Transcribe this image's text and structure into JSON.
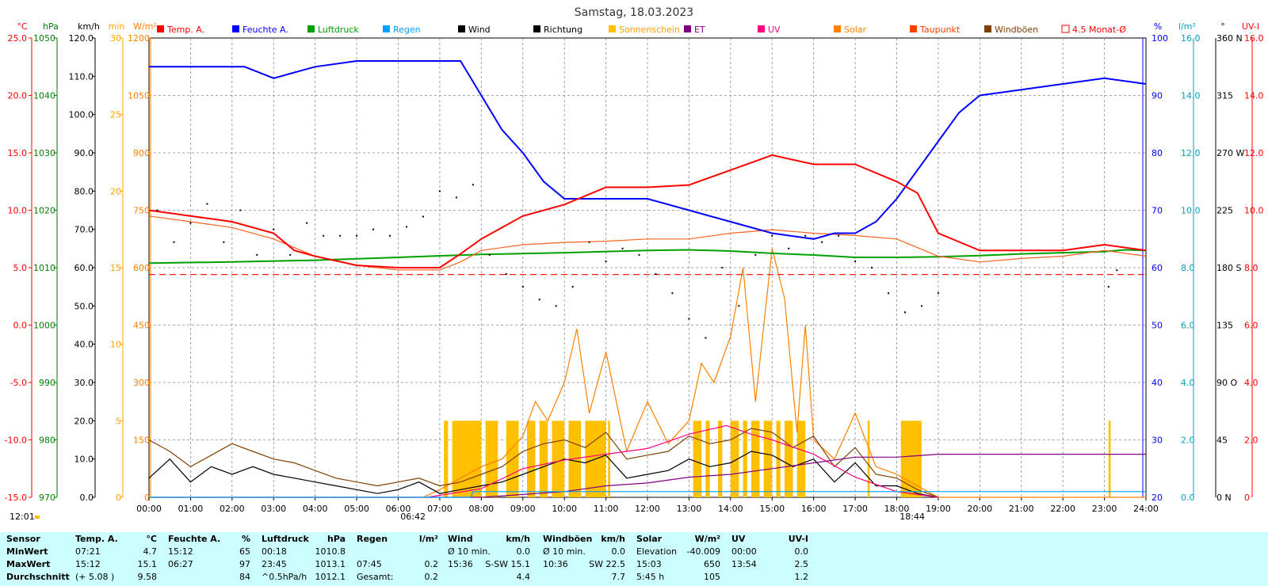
{
  "title": "Samstag, 18.03.2023",
  "footer": {
    "time_left": "12:01",
    "sunrise": "06:42",
    "sunset": "18:44"
  },
  "legend": [
    {
      "label": "Temp. A.",
      "color": "#ff0000"
    },
    {
      "label": "Feuchte A.",
      "color": "#0000ff"
    },
    {
      "label": "Luftdruck",
      "color": "#00a000"
    },
    {
      "label": "Regen",
      "color": "#00a0ff"
    },
    {
      "label": "Wind",
      "color": "#000000"
    },
    {
      "label": "Richtung",
      "color": "#000000"
    },
    {
      "label": "Sonnenschein",
      "color": "#ffc000"
    },
    {
      "label": "ET",
      "color": "#800080"
    },
    {
      "label": "UV",
      "color": "#ff0080"
    },
    {
      "label": "Solar",
      "color": "#ff8000"
    },
    {
      "label": "Taupunkt",
      "color": "#ff4000"
    },
    {
      "label": "Windböen",
      "color": "#804000"
    },
    {
      "label": "4.5 Monat-Ø",
      "color": "#ff0000"
    }
  ],
  "axes_left": [
    {
      "unit": "°C",
      "color": "#ff0000",
      "ticks": [
        "25.0",
        "20.0",
        "15.0",
        "10.0",
        "5.0",
        "0.0",
        "-5.0",
        "-10.0",
        "-15.0"
      ]
    },
    {
      "unit": "hPa",
      "color": "#008000",
      "ticks": [
        "1050",
        "1040",
        "1030",
        "1020",
        "1010",
        "1000",
        "990",
        "980",
        "970"
      ]
    },
    {
      "unit": "km/h",
      "color": "#000000",
      "ticks": [
        "120.0",
        "110.0",
        "100.0",
        "90.0",
        "80.0",
        "70.0",
        "60.0",
        "50.0",
        "40.0",
        "30.0",
        "20.0",
        "10.0",
        "0.0"
      ]
    },
    {
      "unit": "min",
      "color": "#ffa000",
      "ticks": [
        "30",
        "25",
        "20",
        "15",
        "10",
        "5",
        "0"
      ]
    },
    {
      "unit": "W/m²",
      "color": "#ff8000",
      "ticks": [
        "1200",
        "1050",
        "900",
        "750",
        "600",
        "450",
        "300",
        "150",
        "0"
      ]
    }
  ],
  "axes_right": [
    {
      "unit": "%",
      "color": "#0000ff",
      "ticks": [
        "100",
        "90",
        "80",
        "70",
        "60",
        "50",
        "40",
        "30",
        "20"
      ]
    },
    {
      "unit": "l/m²",
      "color": "#00a0c0",
      "ticks": [
        "16.0",
        "14.0",
        "12.0",
        "10.0",
        "8.0",
        "6.0",
        "4.0",
        "2.0",
        "0.0"
      ]
    },
    {
      "unit": "°",
      "color": "#000000",
      "ticks": [
        "360 N",
        "315",
        "270 W",
        "225",
        "180 S",
        "135",
        "90 O",
        "45",
        "0 N"
      ]
    },
    {
      "unit": "UV-I",
      "color": "#ff0000",
      "ticks": [
        "16.0",
        "14.0",
        "12.0",
        "10.0",
        "8.0",
        "6.0",
        "4.0",
        "2.0",
        "0"
      ]
    }
  ],
  "x_ticks": [
    "00:00",
    "01:00",
    "02:00",
    "03:00",
    "04:00",
    "05:00",
    "06:00",
    "07:00",
    "08:00",
    "09:00",
    "10:00",
    "11:00",
    "12:00",
    "13:00",
    "14:00",
    "15:00",
    "16:00",
    "17:00",
    "18:00",
    "19:00",
    "20:00",
    "21:00",
    "22:00",
    "23:00",
    "24:00"
  ],
  "chart_data": {
    "type": "line",
    "x_unit": "hour of day",
    "xlim": [
      0,
      24
    ],
    "grid": true,
    "series": [
      {
        "name": "Temp. A.",
        "unit": "°C",
        "color": "#ff0000",
        "x": [
          0,
          1,
          2,
          3,
          3.5,
          4,
          5,
          6,
          7,
          7.5,
          8,
          9,
          10,
          11,
          12,
          13,
          14,
          15,
          16,
          17,
          18,
          18.5,
          19,
          20,
          21,
          22,
          23,
          24
        ],
        "y": [
          10,
          9.5,
          9,
          8,
          6.5,
          6,
          5.2,
          5,
          5,
          6.2,
          7.5,
          9.5,
          10.5,
          12,
          12,
          12.2,
          13.5,
          14.8,
          14,
          14,
          12.5,
          11.5,
          8,
          6.5,
          6.5,
          6.5,
          7,
          6.5
        ]
      },
      {
        "name": "Taupunkt",
        "unit": "°C",
        "color": "#ff6020",
        "x": [
          0,
          1,
          2,
          3,
          4,
          5,
          6,
          7,
          7.5,
          8,
          9,
          10,
          11,
          12,
          13,
          14,
          15,
          16,
          17,
          18,
          19,
          20,
          21,
          22,
          23,
          24
        ],
        "y": [
          9.5,
          9,
          8.5,
          7.5,
          6,
          5.2,
          4.8,
          4.8,
          5.5,
          6.5,
          7,
          7.2,
          7.3,
          7.5,
          7.5,
          8,
          8.3,
          8,
          7.8,
          7.5,
          6,
          5.5,
          5.8,
          6,
          6.5,
          6
        ]
      },
      {
        "name": "Feuchte A.",
        "unit": "%",
        "color": "#0000ff",
        "x": [
          0,
          2.3,
          3,
          3.5,
          4,
          5,
          6,
          7,
          7.5,
          8,
          8.5,
          9,
          9.5,
          10,
          10.5,
          11,
          12,
          13,
          14,
          15,
          16,
          16.5,
          17,
          17.5,
          18,
          19,
          19.5,
          20,
          21,
          22,
          23,
          24
        ],
        "y": [
          95,
          95,
          93,
          94,
          95,
          96,
          96,
          96,
          96,
          90,
          84,
          80,
          75,
          72,
          72,
          72,
          72,
          70,
          68,
          66,
          65,
          66,
          66,
          68,
          72,
          82,
          87,
          90,
          91,
          92,
          93,
          92
        ]
      },
      {
        "name": "Luftdruck",
        "unit": "hPa",
        "color": "#00a000",
        "x": [
          0,
          2,
          4,
          6,
          8,
          10,
          12,
          13,
          14,
          15,
          16,
          17,
          18,
          19,
          20,
          21,
          22,
          23,
          23.5,
          24
        ],
        "y": [
          1010.8,
          1011,
          1011.3,
          1011.8,
          1012.3,
          1012.6,
          1013,
          1013.1,
          1012.9,
          1012.5,
          1012.2,
          1011.8,
          1011.8,
          1011.9,
          1012.1,
          1012.4,
          1012.6,
          1012.8,
          1013.1,
          1013
        ]
      },
      {
        "name": "Wind",
        "unit": "km/h",
        "color": "#000000",
        "x": [
          0,
          0.5,
          1,
          1.5,
          2,
          2.5,
          3,
          3.5,
          4,
          4.5,
          5,
          5.5,
          6,
          6.5,
          7,
          7.5,
          8,
          8.5,
          9,
          9.5,
          10,
          10.5,
          11,
          11.5,
          12,
          12.5,
          13,
          13.5,
          14,
          14.5,
          15,
          15.5,
          16,
          16.5,
          17,
          17.5,
          18,
          18.5,
          19
        ],
        "y": [
          5,
          10,
          4,
          8,
          6,
          8,
          6,
          5,
          4,
          3,
          2,
          1,
          2,
          4,
          1,
          2,
          3,
          4,
          6,
          8,
          10,
          9,
          11,
          5,
          6,
          7,
          10,
          8,
          9,
          12,
          11,
          8,
          10,
          4,
          9,
          3,
          3,
          1,
          0
        ]
      },
      {
        "name": "Windböen",
        "unit": "km/h",
        "color": "#804000",
        "x": [
          0,
          0.5,
          1,
          1.5,
          2,
          2.5,
          3,
          3.5,
          4,
          4.5,
          5,
          5.5,
          6,
          6.5,
          7,
          7.5,
          8,
          8.5,
          9,
          9.5,
          10,
          10.5,
          11,
          11.5,
          12,
          12.5,
          13,
          13.5,
          14,
          14.5,
          15,
          15.5,
          16,
          16.5,
          17,
          17.5,
          18,
          18.5,
          19
        ],
        "y": [
          15,
          12,
          8,
          11,
          14,
          12,
          10,
          9,
          7,
          5,
          4,
          3,
          4,
          5,
          3,
          4,
          6,
          8,
          12,
          14,
          15,
          13,
          17,
          10,
          11,
          12,
          16,
          14,
          15,
          18,
          17,
          13,
          16,
          8,
          13,
          6,
          5,
          2,
          0
        ]
      },
      {
        "name": "Solar",
        "unit": "W/m²",
        "color": "#ff8000",
        "x": [
          0,
          6.6,
          7,
          7.5,
          8,
          8.5,
          9,
          9.3,
          9.6,
          10,
          10.3,
          10.6,
          11,
          11.5,
          12,
          12.5,
          13,
          13.3,
          13.6,
          14,
          14.3,
          14.6,
          15,
          15.3,
          15.6,
          15.8,
          16,
          16.5,
          17,
          17.5,
          18,
          18.5,
          19,
          24
        ],
        "y": [
          0,
          0,
          20,
          50,
          80,
          100,
          160,
          250,
          200,
          300,
          440,
          220,
          380,
          120,
          250,
          140,
          200,
          350,
          300,
          420,
          600,
          250,
          650,
          520,
          170,
          450,
          150,
          100,
          220,
          80,
          60,
          30,
          0,
          0
        ]
      },
      {
        "name": "UV",
        "unit": "UV-I",
        "color": "#ff0080",
        "x": [
          6.7,
          8,
          9,
          10,
          11,
          12,
          13,
          13.9,
          14.5,
          15,
          16,
          17,
          18,
          19
        ],
        "y": [
          0,
          0.3,
          1,
          1.3,
          1.5,
          1.7,
          2.2,
          2.5,
          2.2,
          2,
          1.5,
          0.7,
          0.2,
          0
        ]
      },
      {
        "name": "ET",
        "unit": "l/m²",
        "color": "#800080",
        "x": [
          0,
          8,
          9,
          10,
          11,
          12,
          13,
          14,
          15,
          16,
          17,
          18,
          19,
          24
        ],
        "y": [
          0,
          0,
          0.1,
          0.2,
          0.4,
          0.5,
          0.7,
          0.8,
          1,
          1.2,
          1.4,
          1.4,
          1.5,
          1.5
        ]
      },
      {
        "name": "Regen",
        "unit": "l/m²",
        "color": "#00a0ff",
        "x": [
          0,
          7.75,
          7.8,
          24
        ],
        "y": [
          0,
          0,
          0.2,
          0.2
        ]
      },
      {
        "name": "4.5 Monat-Ø",
        "unit": "°C",
        "color": "#ff0000",
        "dashed": true,
        "x": [
          0,
          24
        ],
        "y": [
          4.4,
          4.4
        ]
      }
    ],
    "wind_direction": {
      "name": "Richtung",
      "unit": "°",
      "x": [
        0.2,
        0.6,
        1,
        1.4,
        1.8,
        2.2,
        2.6,
        3,
        3.4,
        3.8,
        4.2,
        4.6,
        5,
        5.4,
        5.8,
        6.2,
        6.6,
        7,
        7.4,
        7.8,
        8.2,
        8.6,
        9,
        9.4,
        9.8,
        10.2,
        10.6,
        11,
        11.4,
        11.8,
        12.2,
        12.6,
        13,
        13.4,
        13.8,
        14.2,
        14.6,
        15,
        15.4,
        15.8,
        16.2,
        16.6,
        17,
        17.4,
        17.8,
        18.2,
        18.6,
        19,
        23.1,
        23.3
      ],
      "y": [
        225,
        200,
        215,
        230,
        200,
        225,
        190,
        210,
        190,
        215,
        205,
        205,
        205,
        210,
        205,
        212,
        220,
        240,
        235,
        245,
        190,
        175,
        165,
        155,
        150,
        165,
        200,
        185,
        195,
        190,
        175,
        160,
        140,
        125,
        180,
        150,
        190,
        205,
        195,
        205,
        200,
        205,
        185,
        180,
        160,
        145,
        150,
        160,
        165,
        178
      ]
    },
    "sunshine": {
      "name": "Sonnenschein",
      "unit": "min",
      "intervals": [
        [
          7.1,
          7.2
        ],
        [
          7.3,
          8.0
        ],
        [
          8.1,
          8.4
        ],
        [
          8.6,
          8.9
        ],
        [
          9.1,
          9.3
        ],
        [
          9.4,
          9.6
        ],
        [
          9.7,
          10.0
        ],
        [
          10.1,
          10.4
        ],
        [
          10.5,
          11.0
        ],
        [
          11.05,
          11.1
        ],
        [
          13.1,
          13.3
        ],
        [
          13.4,
          13.5
        ],
        [
          13.7,
          13.8
        ],
        [
          14.0,
          14.2
        ],
        [
          14.3,
          14.4
        ],
        [
          14.5,
          14.7
        ],
        [
          14.8,
          15.0
        ],
        [
          15.1,
          15.2
        ],
        [
          15.3,
          15.5
        ],
        [
          15.6,
          15.8
        ],
        [
          17.3,
          17.35
        ],
        [
          18.1,
          18.6
        ],
        [
          23.1,
          23.15
        ]
      ]
    }
  },
  "stats": {
    "columns": [
      {
        "name": "Sensor",
        "unit": ""
      },
      {
        "name": "Temp. A.",
        "unit": "°C"
      },
      {
        "name": "Feuchte A.",
        "unit": "%"
      },
      {
        "name": "Luftdruck",
        "unit": "hPa"
      },
      {
        "name": "Regen",
        "unit": "l/m²"
      },
      {
        "name": "Wind",
        "unit": "km/h"
      },
      {
        "name": "Windböen",
        "unit": "km/h"
      },
      {
        "name": "Solar",
        "unit": "W/m²"
      },
      {
        "name": "UV",
        "unit": "UV-I"
      }
    ],
    "rows": [
      {
        "label": "MinWert",
        "cells": [
          [
            "07:21",
            "4.7"
          ],
          [
            "15:12",
            "65"
          ],
          [
            "00:18",
            "1010.8"
          ],
          [
            "",
            ""
          ],
          [
            "Ø 10 min.",
            "0.0"
          ],
          [
            "Ø 10 min.",
            "0.0"
          ],
          [
            "Elevation",
            "-40.009"
          ],
          [
            "00:00",
            "0.0"
          ]
        ]
      },
      {
        "label": "MaxWert",
        "cells": [
          [
            "15:12",
            "15.1"
          ],
          [
            "06:27",
            "97"
          ],
          [
            "23:45",
            "1013.1"
          ],
          [
            "07:45",
            "0.2"
          ],
          [
            "15:36",
            "S-SW 15.1"
          ],
          [
            "10:36",
            "SW 22.5"
          ],
          [
            "15:03",
            "650"
          ],
          [
            "13:54",
            "2.5"
          ]
        ]
      },
      {
        "label": "Durchschnitt",
        "cells": [
          [
            "(+ 5.08 )",
            "9.58"
          ],
          [
            "",
            "84"
          ],
          [
            "^0.5hPa/h",
            "1012.1"
          ],
          [
            "Gesamt:",
            "0.2"
          ],
          [
            "",
            "4.4"
          ],
          [
            "",
            "7.7"
          ],
          [
            "5:45 h",
            "105"
          ],
          [
            "",
            "1.2"
          ]
        ]
      }
    ]
  }
}
